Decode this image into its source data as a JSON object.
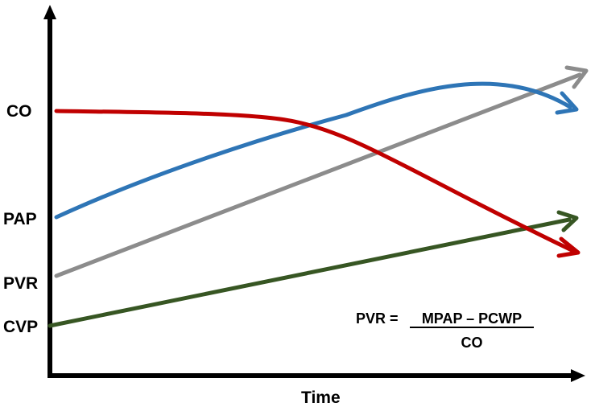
{
  "x_axis_label": "Time",
  "variables": [
    {
      "label": "CO",
      "color": "#c00000"
    },
    {
      "label": "PAP",
      "color": "#2e75b6"
    },
    {
      "label": "PVR",
      "color": "#8c8c8c"
    },
    {
      "label": "CVP",
      "color": "#375623"
    }
  ],
  "formula": {
    "lhs": "PVR =",
    "numerator": "MPAP – PCWP",
    "denominator": "CO"
  },
  "colors": {
    "axis": "#000000",
    "co": "#c00000",
    "pap": "#2e75b6",
    "pvr": "#8c8c8c",
    "cvp": "#375623"
  }
}
